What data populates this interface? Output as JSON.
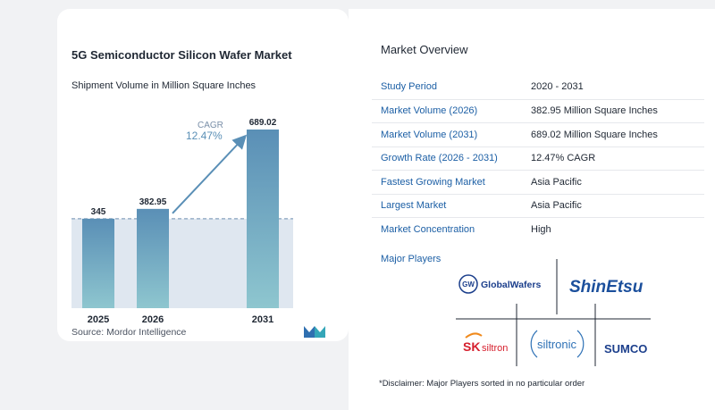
{
  "chart": {
    "title": "5G Semiconductor Silicon Wafer Market",
    "subtitle": "Shipment Volume in Million Square Inches",
    "cagr_label": "CAGR",
    "cagr_value": "12.47%",
    "source": "Source:  Mordor Intelligence"
  },
  "chart_data": {
    "type": "bar",
    "title": "5G Semiconductor Silicon Wafer Market",
    "subtitle": "Shipment Volume in Million Square Inches",
    "categories": [
      "2025",
      "2026",
      "2031"
    ],
    "values": [
      345,
      382.95,
      689.02
    ],
    "value_labels": [
      "345",
      "382.95",
      "689.02"
    ],
    "annotation": "CAGR 12.47%",
    "reference_line_value": 345,
    "colors": {
      "bar_top": "#5a8fb6",
      "bar_bottom": "#8ec6cf",
      "arrow": "#5a8fb6",
      "shade": "#dfe7f0"
    }
  },
  "overview": {
    "title": "Market Overview",
    "rows": [
      {
        "key": "Study Period",
        "value": "2020 - 2031"
      },
      {
        "key": "Market Volume (2026)",
        "value": "382.95 Million Square Inches"
      },
      {
        "key": "Market Volume (2031)",
        "value": "689.02 Million Square Inches"
      },
      {
        "key": "Growth Rate (2026 - 2031)",
        "value": "12.47% CAGR"
      },
      {
        "key": "Fastest Growing Market",
        "value": "Asia Pacific"
      },
      {
        "key": "Largest Market",
        "value": "Asia Pacific"
      },
      {
        "key": "Market Concentration",
        "value": "High"
      }
    ],
    "players_title": "Major Players",
    "players": [
      "GlobalWafers",
      "ShinEtsu",
      "SK siltron",
      "siltronic",
      "SUMCO"
    ],
    "disclaimer": "*Disclaimer: Major Players sorted in no particular order"
  },
  "logos": {
    "globalwafers_badge": "GW",
    "globalwafers_name": "GlobalWafers",
    "shinetsu": "ShinEtsu",
    "sk_mark": "SK",
    "sk_name": "siltron",
    "siltronic": "siltronic",
    "sumco": "SUMCO",
    "colors": {
      "navy": "#1c3f8c",
      "shin_blue": "#1b4f9c",
      "sk_red": "#d6202e",
      "sk_orange": "#f08a1c",
      "siltronic_blue": "#2f72b6"
    }
  }
}
